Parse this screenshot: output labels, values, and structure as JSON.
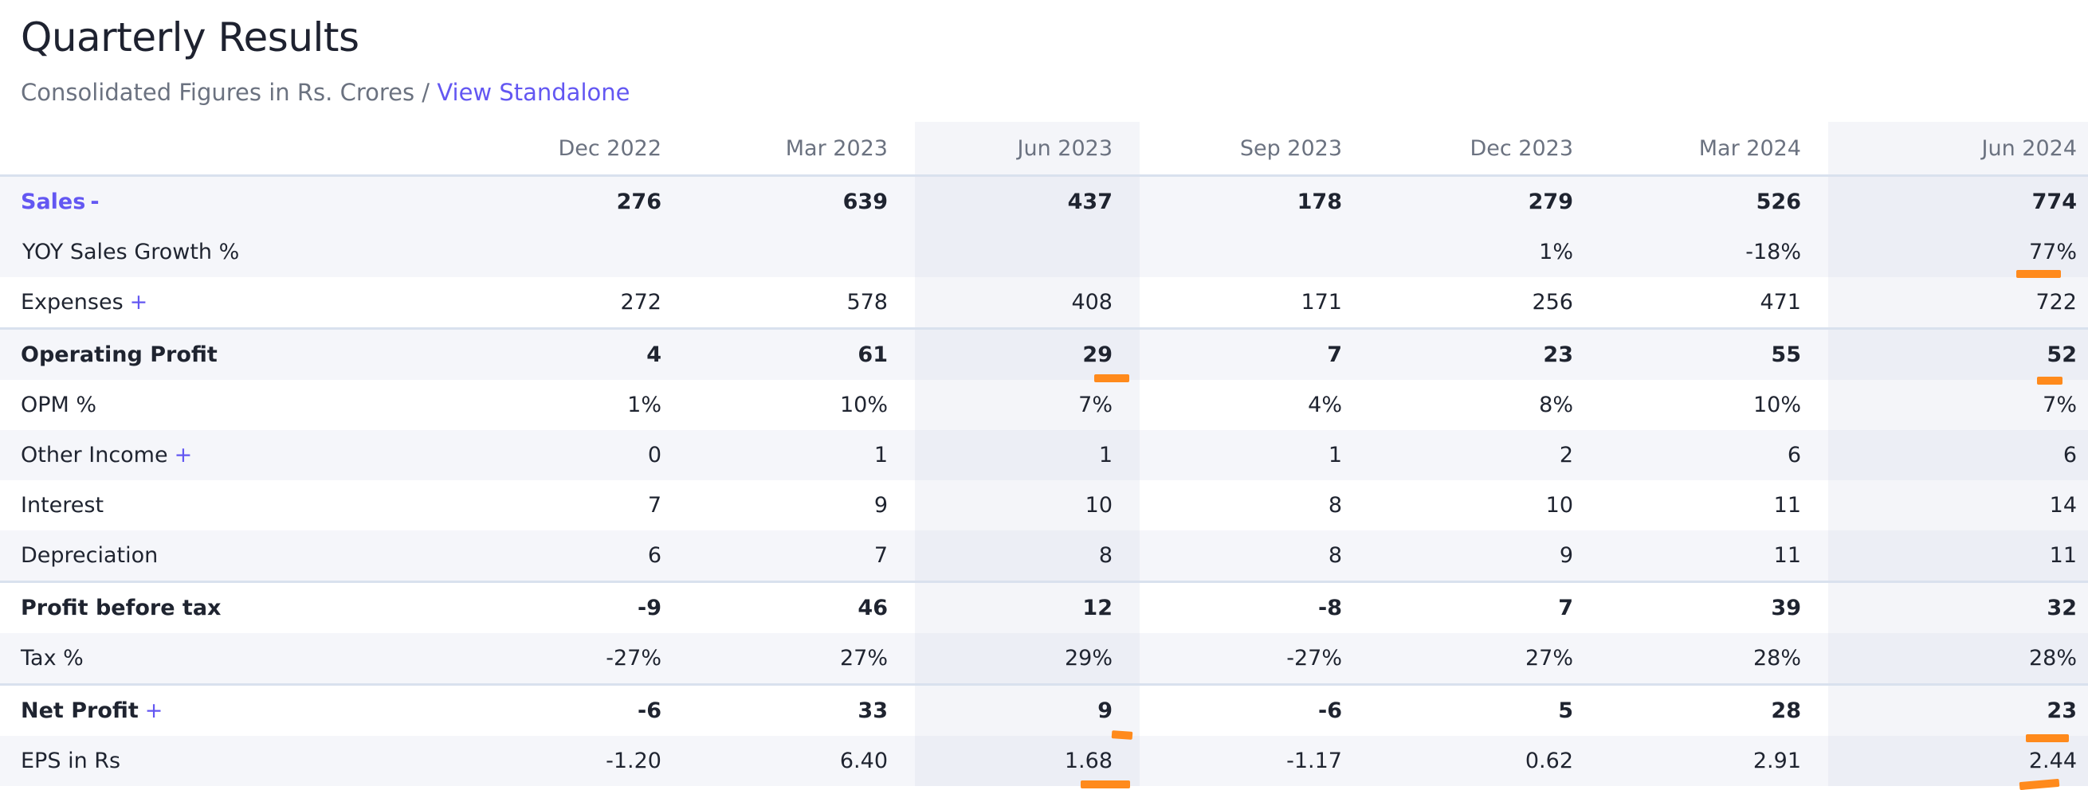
{
  "page": {
    "title": "Quarterly Results",
    "subtitle_prefix": "Consolidated Figures in Rs. Crores / ",
    "subtitle_link": "View Standalone"
  },
  "table": {
    "columns": [
      "Dec 2022",
      "Mar 2023",
      "Jun 2023",
      "Sep 2023",
      "Dec 2023",
      "Mar 2024",
      "Jun 2024"
    ],
    "rows": [
      {
        "label": "Sales",
        "toggle": "-",
        "values": [
          "276",
          "639",
          "437",
          "178",
          "279",
          "526",
          "774"
        ]
      },
      {
        "label": "YOY Sales Growth %",
        "toggle": "",
        "values": [
          "",
          "",
          "",
          "",
          "1%",
          "-18%",
          "77%"
        ]
      },
      {
        "label": "Expenses",
        "toggle": "+",
        "values": [
          "272",
          "578",
          "408",
          "171",
          "256",
          "471",
          "722"
        ]
      },
      {
        "label": "Operating Profit",
        "toggle": "",
        "values": [
          "4",
          "61",
          "29",
          "7",
          "23",
          "55",
          "52"
        ]
      },
      {
        "label": "OPM %",
        "toggle": "",
        "values": [
          "1%",
          "10%",
          "7%",
          "4%",
          "8%",
          "10%",
          "7%"
        ]
      },
      {
        "label": "Other Income",
        "toggle": "+",
        "values": [
          "0",
          "1",
          "1",
          "1",
          "2",
          "6",
          "6"
        ]
      },
      {
        "label": "Interest",
        "toggle": "",
        "values": [
          "7",
          "9",
          "10",
          "8",
          "10",
          "11",
          "14"
        ]
      },
      {
        "label": "Depreciation",
        "toggle": "",
        "values": [
          "6",
          "7",
          "8",
          "8",
          "9",
          "11",
          "11"
        ]
      },
      {
        "label": "Profit before tax",
        "toggle": "",
        "values": [
          "-9",
          "46",
          "12",
          "-8",
          "7",
          "39",
          "32"
        ]
      },
      {
        "label": "Tax %",
        "toggle": "",
        "values": [
          "-27%",
          "27%",
          "29%",
          "-27%",
          "27%",
          "28%",
          "28%"
        ]
      },
      {
        "label": "Net Profit",
        "toggle": "+",
        "values": [
          "-6",
          "33",
          "9",
          "-6",
          "5",
          "28",
          "23"
        ]
      },
      {
        "label": "EPS in Rs",
        "toggle": "",
        "values": [
          "-1.20",
          "6.40",
          "1.68",
          "-1.17",
          "0.62",
          "2.91",
          "2.44"
        ]
      }
    ]
  },
  "highlight_color": "#ff8a1c"
}
